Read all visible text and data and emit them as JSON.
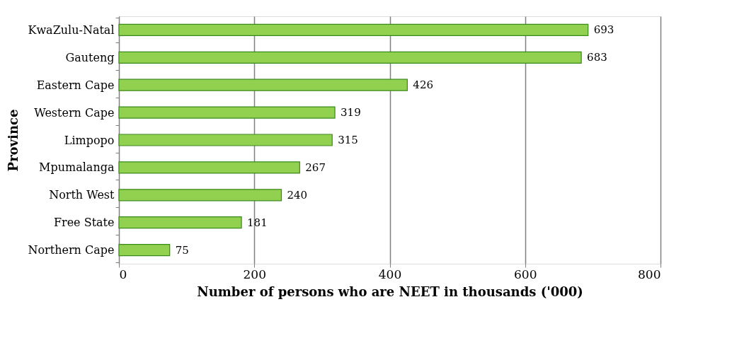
{
  "chart_data": {
    "type": "bar",
    "orientation": "horizontal",
    "xlabel": "Number of persons who are NEET  in thousands ('000)",
    "ylabel": "Province",
    "categories": [
      "KwaZulu-Natal",
      "Gauteng",
      "Eastern Cape",
      "Western Cape",
      "Limpopo",
      "Mpumalanga",
      "North West",
      "Free State",
      "Northern Cape"
    ],
    "values": [
      693,
      683,
      426,
      319,
      315,
      267,
      240,
      181,
      75
    ],
    "color": "#92d050",
    "xlim": [
      0,
      800
    ],
    "xticks": [
      0,
      200,
      400,
      600,
      800
    ],
    "grid": "x",
    "data_labels": true
  }
}
